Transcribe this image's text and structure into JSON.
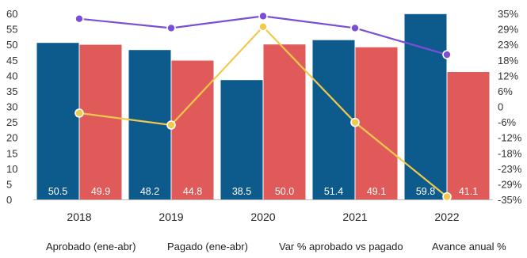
{
  "chart_data": {
    "type": "bar",
    "categories": [
      "2018",
      "2019",
      "2020",
      "2021",
      "2022"
    ],
    "series": [
      {
        "name": "Aprobado (ene-abr)",
        "kind": "bar",
        "axis": "left",
        "color": "#0d5a8c",
        "values": [
          50.5,
          48.2,
          38.5,
          51.4,
          59.8
        ],
        "labels": [
          "50.5",
          "48.2",
          "38.5",
          "51.4",
          "59.8"
        ]
      },
      {
        "name": "Pagado (ene-abr)",
        "kind": "bar",
        "axis": "left",
        "color": "#e05a5a",
        "values": [
          49.9,
          44.8,
          50.0,
          49.1,
          41.1
        ],
        "labels": [
          "49.9",
          "44.8",
          "50.0",
          "49.1",
          "41.1"
        ]
      },
      {
        "name": "Var % aprobado vs pagado",
        "kind": "line",
        "axis": "right",
        "color": "#f2c94c",
        "values": [
          -2.5,
          -7.0,
          30.0,
          -6.0,
          -34.0
        ]
      },
      {
        "name": "Avance anual %",
        "kind": "line",
        "axis": "right",
        "color": "#7a4fd6",
        "values": [
          33.0,
          29.5,
          34.0,
          29.5,
          19.5
        ]
      }
    ],
    "y_left": {
      "min": 0,
      "max": 60,
      "ticks": [
        "0",
        "5",
        "10",
        "15",
        "20",
        "25",
        "30",
        "35",
        "40",
        "45",
        "50",
        "55",
        "60"
      ]
    },
    "y_right": {
      "min": -35,
      "max": 35,
      "ticks": [
        "-35%",
        "-29%",
        "-23%",
        "-18%",
        "-12%",
        "-6%",
        "0",
        "6%",
        "12%",
        "18%",
        "23%",
        "29%",
        "35%"
      ]
    },
    "legend": {
      "position": "bottom"
    },
    "grid": false
  }
}
